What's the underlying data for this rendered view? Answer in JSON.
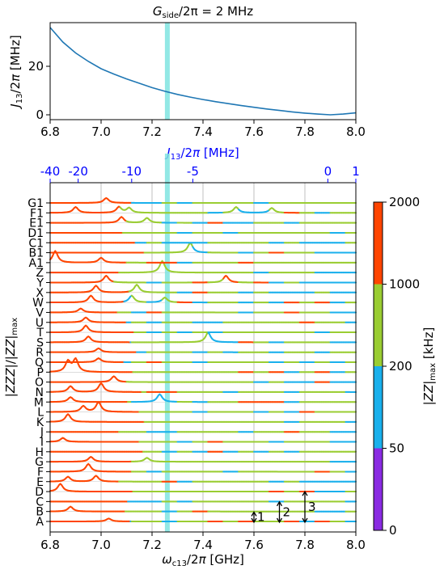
{
  "chart_data": [
    {
      "type": "line",
      "title": "G_side/2π = 2 MHz",
      "xlabel": "",
      "ylabel": "J_13/2π [MHz]",
      "xlim": [
        6.8,
        8.0
      ],
      "ylim": [
        -2,
        38
      ],
      "x_ticks": [
        "6.8",
        "7.0",
        "7.2",
        "7.4",
        "7.6",
        "7.8",
        "8.0"
      ],
      "y_ticks": [
        "0",
        "20"
      ],
      "series": [
        {
          "color": "#1f77b4",
          "x": [
            6.8,
            6.85,
            6.9,
            6.95,
            7.0,
            7.05,
            7.1,
            7.15,
            7.2,
            7.25,
            7.3,
            7.35,
            7.4,
            7.45,
            7.5,
            7.55,
            7.6,
            7.65,
            7.7,
            7.75,
            7.8,
            7.85,
            7.9,
            7.95,
            8.0
          ],
          "y": [
            36,
            30,
            25.5,
            22,
            19,
            16.8,
            14.8,
            13,
            11.2,
            9.7,
            8.4,
            7.3,
            6.3,
            5.4,
            4.6,
            3.8,
            3.1,
            2.4,
            1.8,
            1.2,
            0.7,
            0.3,
            0.0,
            0.3,
            0.8
          ]
        }
      ],
      "highlight_x": 7.26,
      "highlight_color": "#7fe4e0"
    },
    {
      "type": "line",
      "xlabel": "ω_c13/2π [GHz]",
      "ylabel": "|ZZZ|/|ZZ|_max",
      "top_xlabel": "J_13/2π [MHz]",
      "xlim": [
        6.8,
        8.0
      ],
      "x_ticks": [
        "6.8",
        "7.0",
        "7.2",
        "7.4",
        "7.6",
        "7.8",
        "8.0"
      ],
      "top_ticks": [
        {
          "label": "-40",
          "x": 6.8
        },
        {
          "label": "-20",
          "x": 6.91
        },
        {
          "label": "-10",
          "x": 7.12
        },
        {
          "label": "-5",
          "x": 7.36
        },
        {
          "label": "0",
          "x": 7.89
        },
        {
          "label": "1",
          "x": 8.0
        }
      ],
      "y_categories": [
        "A",
        "B",
        "C",
        "D",
        "E",
        "F",
        "G",
        "H",
        "I",
        "J",
        "K",
        "L",
        "M",
        "N",
        "O",
        "P",
        "Q",
        "R",
        "S",
        "T",
        "U",
        "V",
        "W",
        "X",
        "Y",
        "Z",
        "A1",
        "B1",
        "C1",
        "D1",
        "E1",
        "F1",
        "G1"
      ],
      "highlight_x": 7.26,
      "colorbar": {
        "label": "|ZZ|_max [kHz]",
        "bands": [
          {
            "range": [
              0,
              50
            ],
            "color": "#8a2be2"
          },
          {
            "range": [
              50,
              200
            ],
            "color": "#1ab0ec"
          },
          {
            "range": [
              200,
              1000
            ],
            "color": "#9acd32"
          },
          {
            "range": [
              1000,
              2000
            ],
            "color": "#ff4500"
          }
        ],
        "tick_labels": [
          "0",
          "50",
          "200",
          "1000",
          "2000"
        ]
      },
      "scale_bars": [
        {
          "label": "1",
          "x": 7.6,
          "height": 1
        },
        {
          "label": "2",
          "x": 7.7,
          "height": 2
        },
        {
          "label": "3",
          "x": 7.8,
          "height": 3
        }
      ],
      "peaks": [
        {
          "row": "A",
          "x": 7.03,
          "h": 0.3
        },
        {
          "row": "B",
          "x": 6.88,
          "h": 0.5
        },
        {
          "row": "D",
          "x": 6.84,
          "h": 0.8
        },
        {
          "row": "E",
          "x": 6.87,
          "h": 0.5
        },
        {
          "row": "E",
          "x": 6.98,
          "h": 0.6
        },
        {
          "row": "F",
          "x": 6.95,
          "h": 0.8
        },
        {
          "row": "G",
          "x": 6.96,
          "h": 0.5
        },
        {
          "row": "G",
          "x": 7.18,
          "h": 0.4
        },
        {
          "row": "I",
          "x": 6.85,
          "h": 0.4
        },
        {
          "row": "K",
          "x": 6.87,
          "h": 0.8
        },
        {
          "row": "L",
          "x": 6.93,
          "h": 0.6
        },
        {
          "row": "L",
          "x": 6.99,
          "h": 1.0
        },
        {
          "row": "M",
          "x": 6.88,
          "h": 0.5
        },
        {
          "row": "M",
          "x": 7.23,
          "h": 0.8
        },
        {
          "row": "N",
          "x": 6.88,
          "h": 0.6
        },
        {
          "row": "N",
          "x": 7.0,
          "h": 0.9
        },
        {
          "row": "O",
          "x": 7.05,
          "h": 0.6
        },
        {
          "row": "P",
          "x": 6.87,
          "h": 1.1
        },
        {
          "row": "P",
          "x": 6.9,
          "h": 1.3
        },
        {
          "row": "Q",
          "x": 6.99,
          "h": 0.4
        },
        {
          "row": "R",
          "x": 6.99,
          "h": 0.4
        },
        {
          "row": "S",
          "x": 6.95,
          "h": 0.6
        },
        {
          "row": "S",
          "x": 7.42,
          "h": 1.0
        },
        {
          "row": "T",
          "x": 6.94,
          "h": 0.7
        },
        {
          "row": "U",
          "x": 6.94,
          "h": 0.5
        },
        {
          "row": "V",
          "x": 6.92,
          "h": 0.4
        },
        {
          "row": "W",
          "x": 6.96,
          "h": 0.7
        },
        {
          "row": "W",
          "x": 7.12,
          "h": 0.7
        },
        {
          "row": "W",
          "x": 7.25,
          "h": 0.5
        },
        {
          "row": "X",
          "x": 6.98,
          "h": 0.7
        },
        {
          "row": "X",
          "x": 7.14,
          "h": 0.8
        },
        {
          "row": "Y",
          "x": 7.02,
          "h": 0.7
        },
        {
          "row": "Y",
          "x": 7.49,
          "h": 0.7
        },
        {
          "row": "Z",
          "x": 7.24,
          "h": 1.2
        },
        {
          "row": "A1",
          "x": 6.82,
          "h": 1.2
        },
        {
          "row": "A1",
          "x": 7.0,
          "h": 0.5
        },
        {
          "row": "B1",
          "x": 7.35,
          "h": 1.0
        },
        {
          "row": "E1",
          "x": 7.08,
          "h": 0.6
        },
        {
          "row": "E1",
          "x": 7.18,
          "h": 0.5
        },
        {
          "row": "F1",
          "x": 6.9,
          "h": 0.6
        },
        {
          "row": "F1",
          "x": 7.07,
          "h": 0.6
        },
        {
          "row": "F1",
          "x": 7.11,
          "h": 0.5
        },
        {
          "row": "F1",
          "x": 7.53,
          "h": 0.6
        },
        {
          "row": "F1",
          "x": 7.67,
          "h": 0.5
        },
        {
          "row": "G1",
          "x": 7.02,
          "h": 0.5
        }
      ]
    }
  ]
}
